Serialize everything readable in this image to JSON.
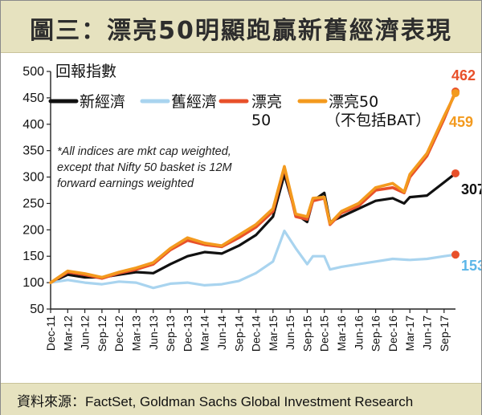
{
  "header": {
    "title": "圖三：漂亮50明顯跑贏新舊經濟表現"
  },
  "footer": {
    "source": "資料來源：FactSet, Goldman Sachs Global Investment Research"
  },
  "chart_data": {
    "type": "line",
    "title": "圖三：漂亮50明顯跑贏新舊經濟表現",
    "ylabel": "回報指數",
    "xlabel": "",
    "ylim": [
      50,
      500
    ],
    "yticks": [
      50,
      100,
      150,
      200,
      250,
      300,
      350,
      400,
      450,
      500
    ],
    "grid": false,
    "legend_position": "top-left",
    "note": [
      "*All indices are mkt cap weighted,",
      "except that Nifty 50 basket is 12M",
      "forward earnings weighted"
    ],
    "x": [
      "Dec-11",
      "Mar-12",
      "Jun-12",
      "Sep-12",
      "Dec-12",
      "Mar-13",
      "Jun-13",
      "Sep-13",
      "Dec-13",
      "Mar-14",
      "Jun-14",
      "Sep-14",
      "Dec-14",
      "Mar-15",
      "Jun-15",
      "Sep-15",
      "Dec-15",
      "Mar-16",
      "Jun-16",
      "Sep-16",
      "Dec-16",
      "Mar-17",
      "Jun-17",
      "Sep-17"
    ],
    "x_end": "Nov-17",
    "series": [
      {
        "name": "新經濟",
        "color": "#111111",
        "end_label": "307",
        "points": [
          [
            "Dec-11",
            100
          ],
          [
            "Mar-12",
            115
          ],
          [
            "Jun-12",
            110
          ],
          [
            "Sep-12",
            110
          ],
          [
            "Dec-12",
            115
          ],
          [
            "Mar-13",
            120
          ],
          [
            "Jun-13",
            118
          ],
          [
            "Sep-13",
            135
          ],
          [
            "Dec-13",
            150
          ],
          [
            "Mar-14",
            158
          ],
          [
            "Jun-14",
            155
          ],
          [
            "Sep-14",
            170
          ],
          [
            "Dec-14",
            190
          ],
          [
            "Mar-15",
            225
          ],
          [
            "May-15",
            305
          ],
          [
            "Jul-15",
            230
          ],
          [
            "Sep-15",
            215
          ],
          [
            "Oct-15",
            255
          ],
          [
            "Dec-15",
            270
          ],
          [
            "Jan-16",
            215
          ],
          [
            "Mar-16",
            225
          ],
          [
            "Jun-16",
            240
          ],
          [
            "Sep-16",
            255
          ],
          [
            "Dec-16",
            260
          ],
          [
            "Feb-17",
            250
          ],
          [
            "Mar-17",
            262
          ],
          [
            "Jun-17",
            265
          ],
          [
            "Sep-17",
            290
          ],
          [
            "Nov-17",
            307
          ]
        ]
      },
      {
        "name": "舊經濟",
        "color": "#a9d4ef",
        "end_label": "153",
        "points": [
          [
            "Dec-11",
            100
          ],
          [
            "Mar-12",
            105
          ],
          [
            "Jun-12",
            100
          ],
          [
            "Sep-12",
            97
          ],
          [
            "Dec-12",
            102
          ],
          [
            "Mar-13",
            100
          ],
          [
            "Jun-13",
            90
          ],
          [
            "Sep-13",
            98
          ],
          [
            "Dec-13",
            100
          ],
          [
            "Mar-14",
            95
          ],
          [
            "Jun-14",
            97
          ],
          [
            "Sep-14",
            103
          ],
          [
            "Dec-14",
            118
          ],
          [
            "Mar-15",
            140
          ],
          [
            "May-15",
            198
          ],
          [
            "Jul-15",
            165
          ],
          [
            "Sep-15",
            135
          ],
          [
            "Oct-15",
            150
          ],
          [
            "Dec-15",
            150
          ],
          [
            "Jan-16",
            125
          ],
          [
            "Mar-16",
            130
          ],
          [
            "Jun-16",
            135
          ],
          [
            "Sep-16",
            140
          ],
          [
            "Dec-16",
            145
          ],
          [
            "Mar-17",
            143
          ],
          [
            "Jun-17",
            145
          ],
          [
            "Sep-17",
            150
          ],
          [
            "Nov-17",
            153
          ]
        ]
      },
      {
        "name": "漂亮50",
        "color": "#e8502a",
        "end_label": "462",
        "points": [
          [
            "Dec-11",
            100
          ],
          [
            "Mar-12",
            120
          ],
          [
            "Jun-12",
            115
          ],
          [
            "Sep-12",
            108
          ],
          [
            "Dec-12",
            118
          ],
          [
            "Mar-13",
            125
          ],
          [
            "Jun-13",
            135
          ],
          [
            "Sep-13",
            162
          ],
          [
            "Dec-13",
            180
          ],
          [
            "Mar-14",
            172
          ],
          [
            "Jun-14",
            168
          ],
          [
            "Sep-14",
            185
          ],
          [
            "Dec-14",
            205
          ],
          [
            "Mar-15",
            235
          ],
          [
            "May-15",
            318
          ],
          [
            "Jul-15",
            225
          ],
          [
            "Sep-15",
            220
          ],
          [
            "Oct-15",
            255
          ],
          [
            "Dec-15",
            260
          ],
          [
            "Jan-16",
            210
          ],
          [
            "Mar-16",
            232
          ],
          [
            "Jun-16",
            245
          ],
          [
            "Sep-16",
            275
          ],
          [
            "Dec-16",
            280
          ],
          [
            "Feb-17",
            270
          ],
          [
            "Mar-17",
            300
          ],
          [
            "Jun-17",
            340
          ],
          [
            "Sep-17",
            410
          ],
          [
            "Nov-17",
            462
          ]
        ]
      },
      {
        "name": "漂亮50（不包括BAT）",
        "color": "#f39a1e",
        "end_label": "459",
        "points": [
          [
            "Dec-11",
            100
          ],
          [
            "Mar-12",
            122
          ],
          [
            "Jun-12",
            117
          ],
          [
            "Sep-12",
            110
          ],
          [
            "Dec-12",
            120
          ],
          [
            "Mar-13",
            128
          ],
          [
            "Jun-13",
            138
          ],
          [
            "Sep-13",
            165
          ],
          [
            "Dec-13",
            185
          ],
          [
            "Mar-14",
            175
          ],
          [
            "Jun-14",
            170
          ],
          [
            "Sep-14",
            190
          ],
          [
            "Dec-14",
            210
          ],
          [
            "Mar-15",
            240
          ],
          [
            "May-15",
            320
          ],
          [
            "Jul-15",
            230
          ],
          [
            "Sep-15",
            225
          ],
          [
            "Oct-15",
            260
          ],
          [
            "Dec-15",
            262
          ],
          [
            "Jan-16",
            212
          ],
          [
            "Mar-16",
            235
          ],
          [
            "Jun-16",
            250
          ],
          [
            "Sep-16",
            280
          ],
          [
            "Dec-16",
            288
          ],
          [
            "Feb-17",
            272
          ],
          [
            "Mar-17",
            305
          ],
          [
            "Jun-17",
            345
          ],
          [
            "Sep-17",
            415
          ],
          [
            "Nov-17",
            459
          ]
        ]
      }
    ]
  }
}
